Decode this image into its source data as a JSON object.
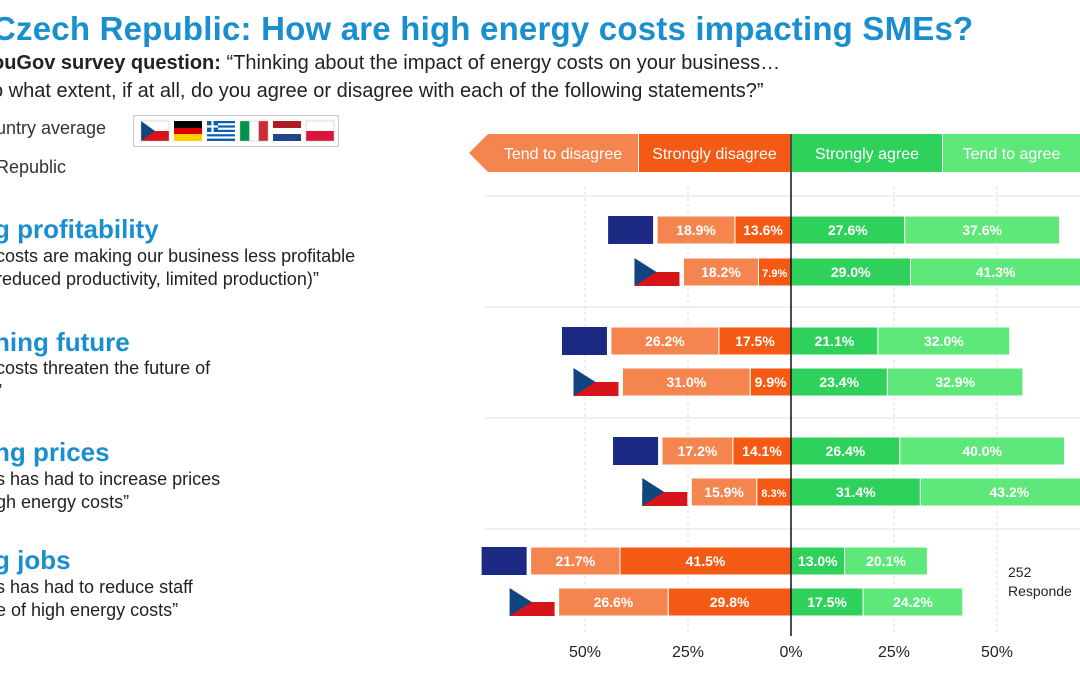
{
  "title": "Czech Republic: How are high energy costs impacting SMEs?",
  "subtitle": {
    "source": "ouGov survey question:",
    "question_line1": "“Thinking about the impact of energy costs on your business…",
    "question_line2": "o what extent, if at all, do you agree or disagree with each of the following statements?”"
  },
  "legend": {
    "country_average": "untry average",
    "country": "Republic",
    "flags": [
      "Czech Republic",
      "Germany",
      "Greece",
      "Italy",
      "Netherlands",
      "Poland"
    ]
  },
  "questions": [
    {
      "title": "g profitability",
      "text": [
        "costs are making our business less profitable",
        "reduced productivity, limited production)”"
      ]
    },
    {
      "title": "ning future",
      "text": [
        "costs threaten the future of",
        "”"
      ]
    },
    {
      "title": "ng prices",
      "text": [
        "s has had to increase prices",
        "gh energy costs”"
      ]
    },
    {
      "title": "g jobs",
      "text": [
        "s has had to reduce staff",
        "e of high energy costs”"
      ]
    }
  ],
  "respondents_note": [
    "252",
    "Responde"
  ],
  "colors": {
    "tend_disagree": "#f5854f",
    "strongly_disagree": "#f55a14",
    "strongly_agree": "#2ed25a",
    "tend_agree": "#5ee87a",
    "avg_marker": "#1c2a84",
    "title_blue": "#1a8fd0"
  },
  "chart_data": {
    "type": "bar",
    "orientation": "horizontal-diverging",
    "series_names": [
      "Tend to disagree",
      "Strongly disagree",
      "Strongly agree",
      "Tend to agree"
    ],
    "x_ticks": [
      "50%",
      "25%",
      "0%",
      "25%",
      "50%"
    ],
    "x_range": [
      -50,
      50
    ],
    "rows": [
      {
        "group": 0,
        "kind": "average",
        "tend_disagree": 18.9,
        "strongly_disagree": 13.6,
        "strongly_agree": 27.6,
        "tend_agree": 37.6,
        "labels": [
          "18.9%",
          "13.6%",
          "27.6%",
          "37.6%"
        ]
      },
      {
        "group": 0,
        "kind": "czech",
        "tend_disagree": 18.2,
        "strongly_disagree": 7.9,
        "strongly_agree": 29.0,
        "tend_agree": 41.3,
        "labels": [
          "18.2%",
          "7.9%",
          "29.0%",
          "41.3%"
        ]
      },
      {
        "group": 1,
        "kind": "average",
        "tend_disagree": 26.2,
        "strongly_disagree": 17.5,
        "strongly_agree": 21.1,
        "tend_agree": 32.0,
        "labels": [
          "26.2%",
          "17.5%",
          "21.1%",
          "32.0%"
        ]
      },
      {
        "group": 1,
        "kind": "czech",
        "tend_disagree": 31.0,
        "strongly_disagree": 9.9,
        "strongly_agree": 23.4,
        "tend_agree": 32.9,
        "labels": [
          "31.0%",
          "9.9%",
          "23.4%",
          "32.9%"
        ]
      },
      {
        "group": 2,
        "kind": "average",
        "tend_disagree": 17.2,
        "strongly_disagree": 14.1,
        "strongly_agree": 26.4,
        "tend_agree": 40.0,
        "labels": [
          "17.2%",
          "14.1%",
          "26.4%",
          "40.0%"
        ]
      },
      {
        "group": 2,
        "kind": "czech",
        "tend_disagree": 15.9,
        "strongly_disagree": 8.3,
        "strongly_agree": 31.4,
        "tend_agree": 43.2,
        "labels": [
          "15.9%",
          "8.3%",
          "31.4%",
          "43.2%"
        ]
      },
      {
        "group": 3,
        "kind": "average",
        "tend_disagree": 21.7,
        "strongly_disagree": 41.5,
        "strongly_agree": 13.0,
        "tend_agree": 20.1,
        "labels": [
          "21.7%",
          "41.5%",
          "13.0%",
          "20.1%"
        ]
      },
      {
        "group": 3,
        "kind": "czech",
        "tend_disagree": 26.6,
        "strongly_disagree": 29.8,
        "strongly_agree": 17.5,
        "tend_agree": 24.2,
        "labels": [
          "26.6%",
          "29.8%",
          "17.5%",
          "24.2%"
        ]
      }
    ],
    "grid": true,
    "legend_position": "top"
  }
}
